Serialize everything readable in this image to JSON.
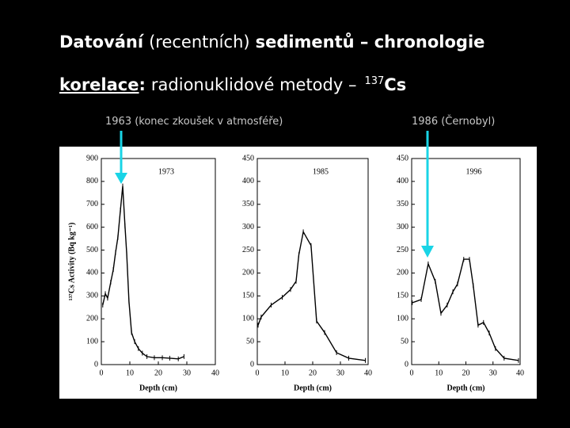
{
  "slide": {
    "title": [
      "Datování",
      "(recentních)",
      "sedimentů – chronologie"
    ],
    "subtitle": [
      "korelace",
      ":",
      "radionuklidové metody –",
      "137",
      "Cs"
    ],
    "annotations": [
      "1963 (konec zkoušek v atmosféře)",
      "1986 (Černobyl)"
    ]
  },
  "chart_data": [
    {
      "type": "line",
      "title": "1973",
      "xlabel": "Depth (cm)",
      "ylabel": "¹³⁷Cs Activity (Bq kg⁻¹)",
      "xlim": [
        0,
        40
      ],
      "xticks": [
        0,
        10,
        20,
        30,
        40
      ],
      "ylim": [
        0,
        900
      ],
      "yticks": [
        0,
        100,
        200,
        300,
        400,
        500,
        600,
        700,
        800,
        900
      ],
      "series": [
        {
          "color": "#000000",
          "x": [
            0.5,
            1.4,
            2.2,
            3.3,
            4.2,
            5,
            5.8,
            6.7,
            7.5,
            8.3,
            8.9,
            9.7,
            10.6,
            11.7,
            13,
            14.4,
            16,
            18.6,
            21.4,
            24,
            27,
            29
          ],
          "values": [
            260,
            310,
            290,
            360,
            415,
            490,
            555,
            675,
            780,
            605,
            485,
            275,
            140,
            100,
            70,
            50,
            35,
            30,
            30,
            28,
            25,
            35
          ]
        }
      ]
    },
    {
      "type": "line",
      "title": "1985",
      "xlabel": "Depth (cm)",
      "xlim": [
        0,
        40
      ],
      "xticks": [
        0,
        10,
        20,
        30,
        40
      ],
      "ylim": [
        0,
        450
      ],
      "yticks": [
        0,
        50,
        100,
        150,
        200,
        250,
        300,
        350,
        400,
        450
      ],
      "series": [
        {
          "color": "#000000",
          "x": [
            0.3,
            1.4,
            5,
            9,
            12,
            14,
            15,
            16.6,
            19.4,
            21.4,
            24.3,
            28.6,
            33,
            39
          ],
          "values": [
            86,
            104,
            130,
            147,
            164,
            182,
            240,
            290,
            260,
            95,
            70,
            26,
            14,
            9
          ]
        }
      ]
    },
    {
      "type": "line",
      "title": "1996",
      "xlabel": "Depth (cm)",
      "xlim": [
        0,
        40
      ],
      "xticks": [
        0,
        10,
        20,
        30,
        40
      ],
      "ylim": [
        0,
        450
      ],
      "yticks": [
        0,
        50,
        100,
        150,
        200,
        250,
        300,
        350,
        400,
        450
      ],
      "series": [
        {
          "color": "#000000",
          "x": [
            0.2,
            3.5,
            6.1,
            8.7,
            10.8,
            13.1,
            15.2,
            16.9,
            19.2,
            21.3,
            22.7,
            24.5,
            26.5,
            28.6,
            30.9,
            34.1,
            39.4
          ],
          "values": [
            135,
            142,
            220,
            182,
            112,
            130,
            159,
            176,
            230,
            230,
            173,
            86,
            92,
            69,
            35,
            14,
            9
          ]
        }
      ]
    }
  ]
}
